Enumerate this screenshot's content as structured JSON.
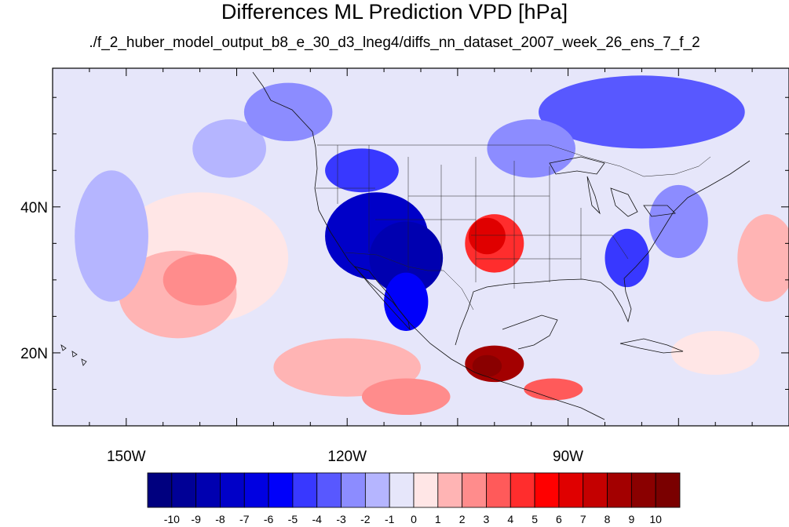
{
  "title": "Differences ML Prediction VPD [hPa]",
  "subtitle": "./f_2_huber_model_output_b8_e_30_d3_lneg4/diffs_nn_dataset_2007_week_26_ens_7_f_2",
  "map": {
    "projection": "cylindrical-equidistant",
    "lon_range": [
      -160,
      -60
    ],
    "lat_range": [
      10,
      59
    ],
    "lon_ticks": [
      {
        "value": -150,
        "label": "150W"
      },
      {
        "value": -120,
        "label": "120W"
      },
      {
        "value": -90,
        "label": "90W"
      }
    ],
    "lat_ticks": [
      {
        "value": 40,
        "label": "40N"
      },
      {
        "value": 20,
        "label": "20N"
      }
    ],
    "blobs": [
      {
        "lon": -140,
        "lat": 33,
        "rx": 12,
        "ry": 9,
        "value": 0.5
      },
      {
        "lon": -143,
        "lat": 28,
        "rx": 8,
        "ry": 6,
        "value": 1.5
      },
      {
        "lon": -140,
        "lat": 30,
        "rx": 5,
        "ry": 3.5,
        "value": 2.5
      },
      {
        "lon": -152,
        "lat": 36,
        "rx": 5,
        "ry": 9,
        "value": -1.5
      },
      {
        "lon": -136,
        "lat": 48,
        "rx": 5,
        "ry": 4,
        "value": -1.5
      },
      {
        "lon": -128,
        "lat": 53,
        "rx": 6,
        "ry": 4,
        "value": -2.5
      },
      {
        "lon": -116,
        "lat": 36,
        "rx": 7,
        "ry": 6,
        "value": -8
      },
      {
        "lon": -112,
        "lat": 33,
        "rx": 5,
        "ry": 5,
        "value": -9
      },
      {
        "lon": -118,
        "lat": 45,
        "rx": 5,
        "ry": 3,
        "value": -5
      },
      {
        "lon": -112,
        "lat": 27,
        "rx": 3,
        "ry": 4,
        "value": -6
      },
      {
        "lon": -100,
        "lat": 35,
        "rx": 4,
        "ry": 4,
        "value": 4.5
      },
      {
        "lon": -101,
        "lat": 36,
        "rx": 2.5,
        "ry": 2.5,
        "value": 6
      },
      {
        "lon": -100,
        "lat": 18.5,
        "rx": 4,
        "ry": 2.5,
        "value": 8
      },
      {
        "lon": -101,
        "lat": 18.2,
        "rx": 2,
        "ry": 1.5,
        "value": 9.5
      },
      {
        "lon": -92,
        "lat": 15,
        "rx": 4,
        "ry": 1.5,
        "value": 3.5
      },
      {
        "lon": -120,
        "lat": 18,
        "rx": 10,
        "ry": 4,
        "value": 1.5
      },
      {
        "lon": -112,
        "lat": 14,
        "rx": 6,
        "ry": 2.5,
        "value": 2.5
      },
      {
        "lon": -80,
        "lat": 53,
        "rx": 14,
        "ry": 5,
        "value": -3.5
      },
      {
        "lon": -95,
        "lat": 48,
        "rx": 6,
        "ry": 4,
        "value": -3
      },
      {
        "lon": -82,
        "lat": 33,
        "rx": 3,
        "ry": 4,
        "value": -4.5
      },
      {
        "lon": -75,
        "lat": 38,
        "rx": 4,
        "ry": 5,
        "value": -2.5
      },
      {
        "lon": -63,
        "lat": 33,
        "rx": 4,
        "ry": 6,
        "value": 1.5
      },
      {
        "lon": -70,
        "lat": 20,
        "rx": 6,
        "ry": 3,
        "value": 0.5
      }
    ]
  },
  "colorbar": {
    "levels": [
      "-10",
      "-9",
      "-8",
      "-7",
      "-6",
      "-5",
      "-4",
      "-3",
      "-2",
      "-1",
      "0",
      "1",
      "2",
      "3",
      "4",
      "5",
      "6",
      "7",
      "8",
      "9",
      "10"
    ],
    "colors": [
      "#00007f",
      "#000096",
      "#0000b0",
      "#0000c8",
      "#0000e1",
      "#0000fa",
      "#3838ff",
      "#5858ff",
      "#8c8cff",
      "#b5b5ff",
      "#e6e6fa",
      "#ffe6e6",
      "#ffb4b4",
      "#ff8c8c",
      "#ff5a5a",
      "#ff2d2d",
      "#ff0000",
      "#e00000",
      "#c40000",
      "#a30000",
      "#8a0000",
      "#7a0000"
    ]
  }
}
